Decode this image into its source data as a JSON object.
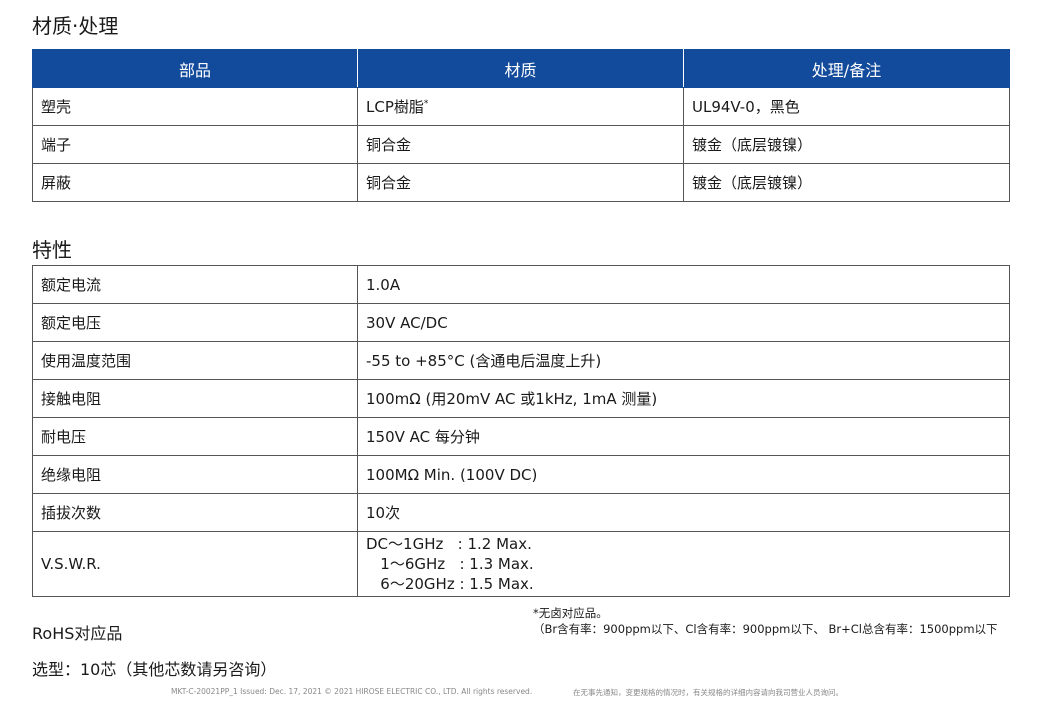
{
  "materials": {
    "title": "材质·处理",
    "headers": [
      "部品",
      "材质",
      "处理/备注"
    ],
    "rows": [
      [
        "塑壳",
        "LCP樹脂",
        "UL94V-0，黑色"
      ],
      [
        "端子",
        "铜合金",
        "镀金（底层镀镍）"
      ],
      [
        "屏蔽",
        "铜合金",
        "镀金（底层镀镍）"
      ]
    ],
    "footnote_mark": "*",
    "header_color": "#134b9c"
  },
  "specs": {
    "title": "特性",
    "rows": [
      [
        "额定电流",
        "1.0A"
      ],
      [
        "额定电压",
        "30V AC/DC"
      ],
      [
        "使用温度范围",
        "-55 to +85°C (含通电后温度上升)"
      ],
      [
        "接触电阻",
        "100mΩ (用20mV AC 或1kHz, 1mA 测量)"
      ],
      [
        "耐电压",
        "150V AC 每分钟"
      ],
      [
        "绝缘电阻",
        "100MΩ Min. (100V DC)"
      ],
      [
        "插拔次数",
        "10次"
      ]
    ],
    "vswr": {
      "label": "V.S.W.R.",
      "lines": [
        "DC～1GHz   : 1.2 Max.",
        "   1～6GHz   : 1.3 Max.",
        "   6～20GHz : 1.5 Max."
      ]
    }
  },
  "rohs": "RoHS对应品",
  "note": {
    "line1": "*无卤对应品。",
    "line2": "（Br含有率：900ppm以下、Cl含有率：900ppm以下、 Br+Cl总含有率：1500ppm以下"
  },
  "selection": "选型：10芯（其他芯数请另咨询）",
  "footer": {
    "left": "MKT-C-20021PP_1  Issued: Dec. 17, 2021    © 2021 HIROSE ELECTRIC CO., LTD. All rights reserved.",
    "right": "在无事先通知，变更规格的情况时，有关规格的详细内容请向我司营业人员询问。"
  }
}
